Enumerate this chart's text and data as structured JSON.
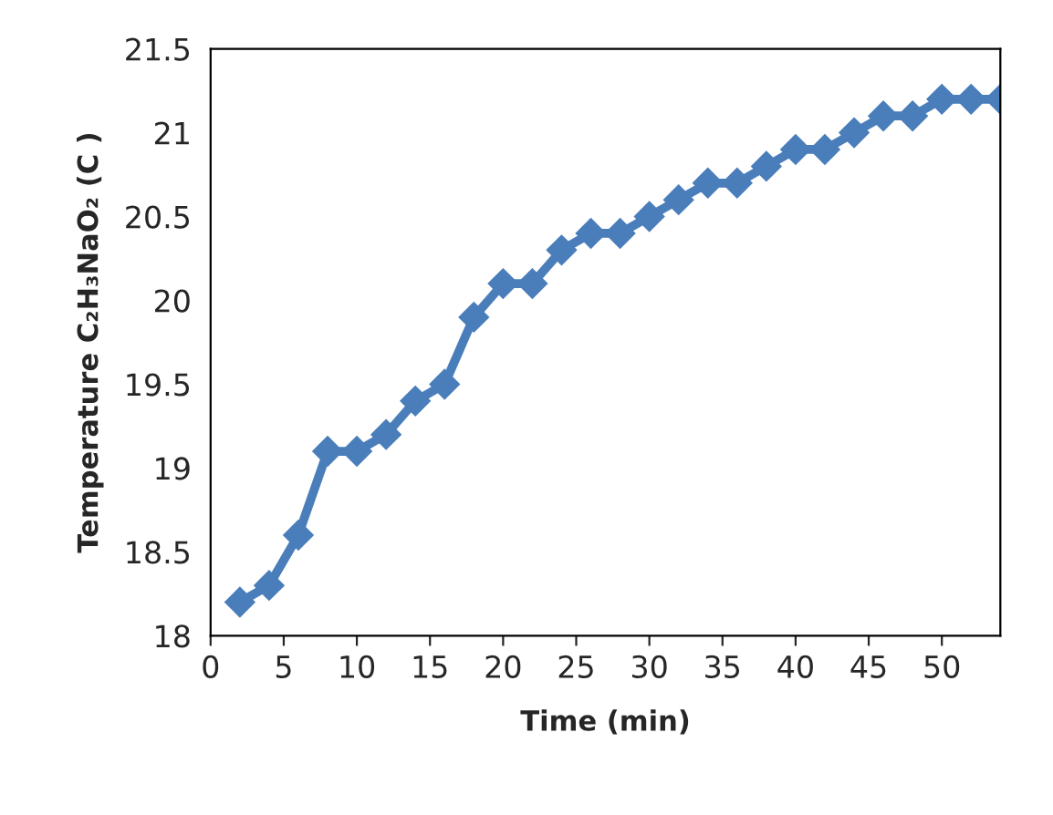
{
  "chart_data": {
    "type": "line",
    "xlabel": "Time (min)",
    "ylabel": "Temperature C₂H₃NaO₂ (C )",
    "x": [
      2,
      4,
      6,
      8,
      10,
      12,
      14,
      16,
      18,
      20,
      22,
      24,
      26,
      28,
      30,
      32,
      34,
      36,
      38,
      40,
      42,
      44,
      46,
      48,
      50,
      52,
      54
    ],
    "series": [
      {
        "color": "#4a7ebb",
        "values": [
          18.2,
          18.3,
          18.6,
          19.1,
          19.1,
          19.2,
          19.4,
          19.5,
          19.9,
          20.1,
          20.1,
          20.3,
          20.4,
          20.4,
          20.5,
          20.6,
          20.7,
          20.7,
          20.8,
          20.9,
          20.9,
          21.0,
          21.1,
          21.1,
          21.2,
          21.2,
          21.2
        ]
      }
    ],
    "xlim": [
      0,
      54
    ],
    "xticks": [
      0,
      5,
      10,
      15,
      20,
      25,
      30,
      35,
      40,
      45,
      50
    ],
    "ylim": [
      18,
      21.5
    ],
    "yticks": [
      18,
      {
        "value": 18.5,
        "label": "18.5"
      },
      19,
      {
        "value": 19.5,
        "label": "19.5"
      },
      20,
      {
        "value": 20.5,
        "label": "20.5"
      },
      21,
      {
        "value": 21.5,
        "label": "21.5"
      }
    ],
    "marker": "diamond",
    "line_style": "solid",
    "grid": false,
    "legend": false
  }
}
